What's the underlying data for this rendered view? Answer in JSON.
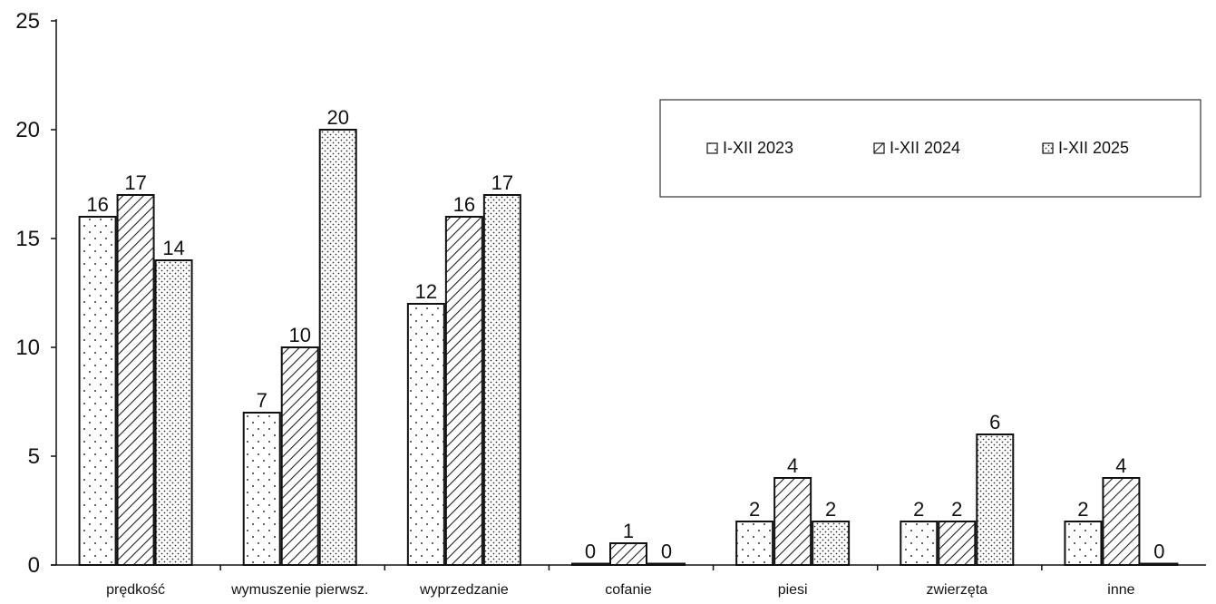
{
  "chart_data": {
    "type": "bar",
    "title": "",
    "xlabel": "",
    "ylabel": "",
    "ylim": [
      0,
      25
    ],
    "yticks": [
      0,
      5,
      10,
      15,
      20,
      25
    ],
    "categories": [
      "prędkość",
      "wymuszenie pierwsz.",
      "wyprzedzanie",
      "cofanie",
      "piesi",
      "zwierzęta",
      "inne"
    ],
    "series": [
      {
        "name": "I-XII 2023",
        "pattern": "dots",
        "values": [
          16,
          7,
          12,
          0,
          2,
          2,
          2
        ]
      },
      {
        "name": "I-XII 2024",
        "pattern": "hatch",
        "values": [
          17,
          10,
          16,
          1,
          4,
          2,
          4
        ]
      },
      {
        "name": "I-XII 2025",
        "pattern": "dense-dots",
        "values": [
          14,
          20,
          17,
          0,
          2,
          6,
          0
        ]
      }
    ],
    "legend_position": "top-right",
    "grid": false,
    "colors": {
      "bar_fill": "#ffffff",
      "stroke": "#111111"
    }
  }
}
